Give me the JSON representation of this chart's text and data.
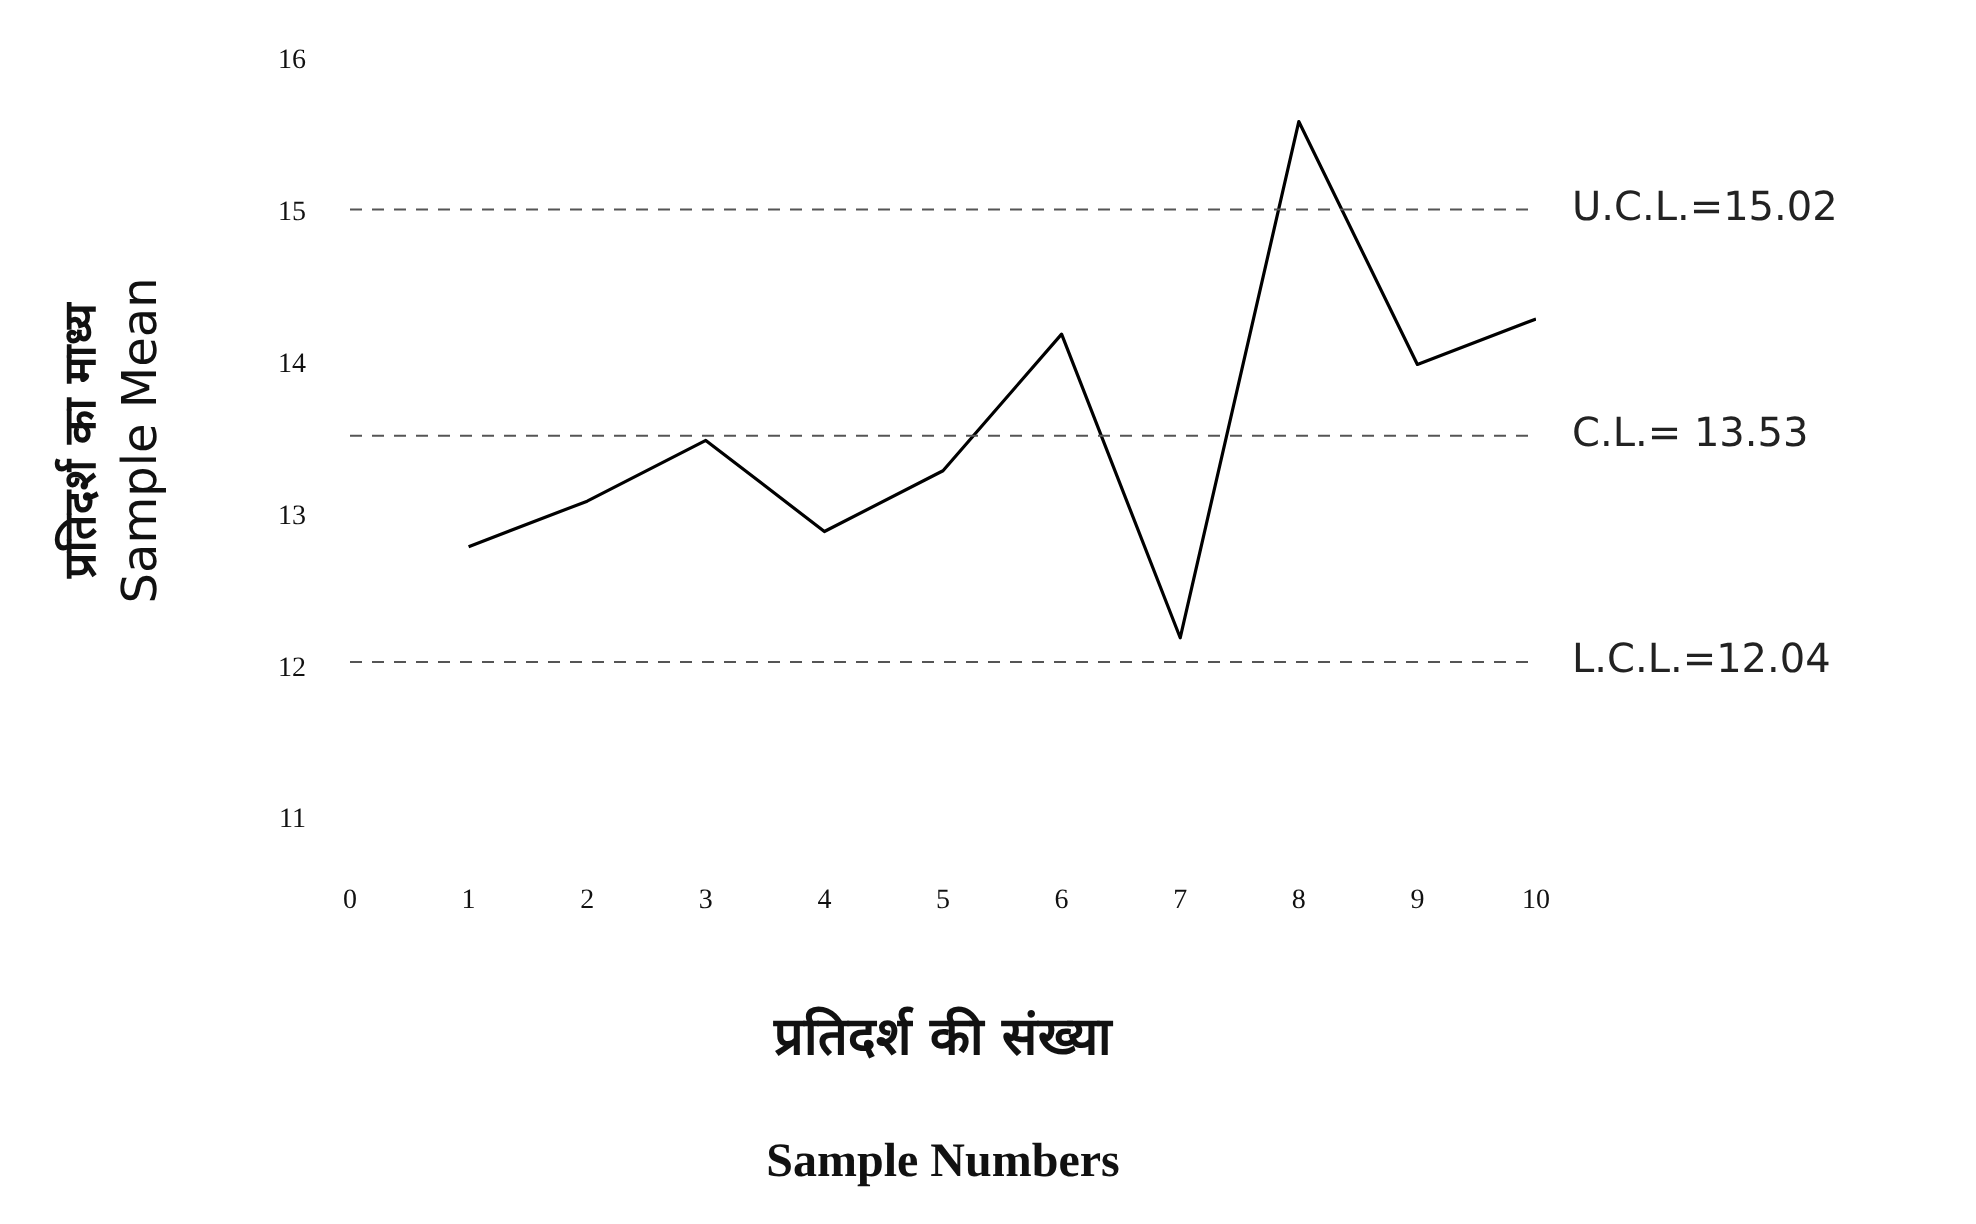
{
  "chart_data": {
    "type": "line",
    "xlabel": "प्रतिदर्श की संख्या\nSample Numbers",
    "ylabel": "प्रतिदर्श का माध्य\nSample Mean",
    "x": [
      1,
      2,
      3,
      4,
      5,
      6,
      7,
      8,
      9,
      10
    ],
    "series": [
      {
        "color": "#000000",
        "values": [
          12.8,
          13.1,
          13.5,
          12.9,
          13.3,
          14.2,
          12.2,
          15.6,
          14.0,
          14.3
        ]
      }
    ],
    "xlim": [
      0,
      10
    ],
    "xticks": [
      0,
      1,
      2,
      3,
      4,
      5,
      6,
      7,
      8,
      9,
      10
    ],
    "ylim": [
      11,
      16
    ],
    "yticks": [
      11,
      12,
      13,
      14,
      15,
      16
    ],
    "ref_lines": [
      {
        "axis": "y",
        "value": 15.02,
        "label": "U.C.L.=15.02",
        "color": "#555555",
        "line_style": "dashed"
      },
      {
        "axis": "y",
        "value": 13.53,
        "label": "C.L.= 13.53",
        "color": "#555555",
        "line_style": "dashed"
      },
      {
        "axis": "y",
        "value": 12.04,
        "label": "L.C.L.=12.04",
        "color": "#555555",
        "line_style": "dashed"
      }
    ],
    "grid": false,
    "legend": false,
    "marker": "none",
    "line_style": "solid"
  }
}
